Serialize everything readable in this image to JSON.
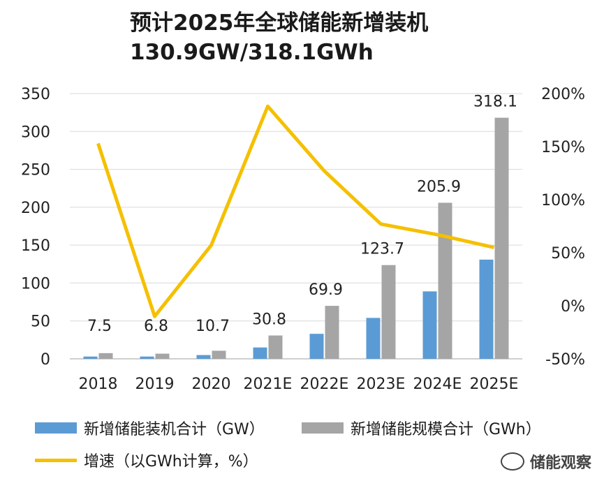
{
  "title": "预计2025年全球储能新增装机",
  "subtitle": "130.9GW/318.1GWh",
  "colors": {
    "gw": "#5b9bd5",
    "gwh": "#a5a5a5",
    "growth": "#f5c000"
  },
  "legend": {
    "gw": "新增储能装机合计（GW）",
    "gwh": "新增储能规模合计（GWh）",
    "growth": "增速（以GWh计算，%）"
  },
  "watermark": "储能观察",
  "chart_data": {
    "type": "bar+line",
    "categories": [
      "2018",
      "2019",
      "2020",
      "2021E",
      "2022E",
      "2023E",
      "2024E",
      "2025E"
    ],
    "series": [
      {
        "name": "新增储能装机合计（GW）",
        "axis": "left",
        "type": "bar",
        "values": [
          3.0,
          3.0,
          5.0,
          15.0,
          33.0,
          54.0,
          89.0,
          130.9
        ]
      },
      {
        "name": "新增储能规模合计（GWh）",
        "axis": "left",
        "type": "bar",
        "values": [
          7.5,
          6.8,
          10.7,
          30.8,
          69.9,
          123.7,
          205.9,
          318.1
        ]
      },
      {
        "name": "增速（以GWh计算，%）",
        "axis": "right",
        "type": "line",
        "values": [
          153,
          -10,
          57,
          188,
          127,
          77,
          67,
          55
        ]
      }
    ],
    "data_labels": [
      "7.5",
      "6.8",
      "10.7",
      "30.8",
      "69.9",
      "123.7",
      "205.9",
      "318.1"
    ],
    "left_axis": {
      "min": 0,
      "max": 350,
      "ticks": [
        "0",
        "50",
        "100",
        "150",
        "200",
        "250",
        "300",
        "350"
      ]
    },
    "right_axis": {
      "min": -50,
      "max": 200,
      "ticks": [
        "-50%",
        "0%",
        "50%",
        "100%",
        "150%",
        "200%"
      ]
    },
    "grid": true,
    "legend_position": "bottom"
  }
}
